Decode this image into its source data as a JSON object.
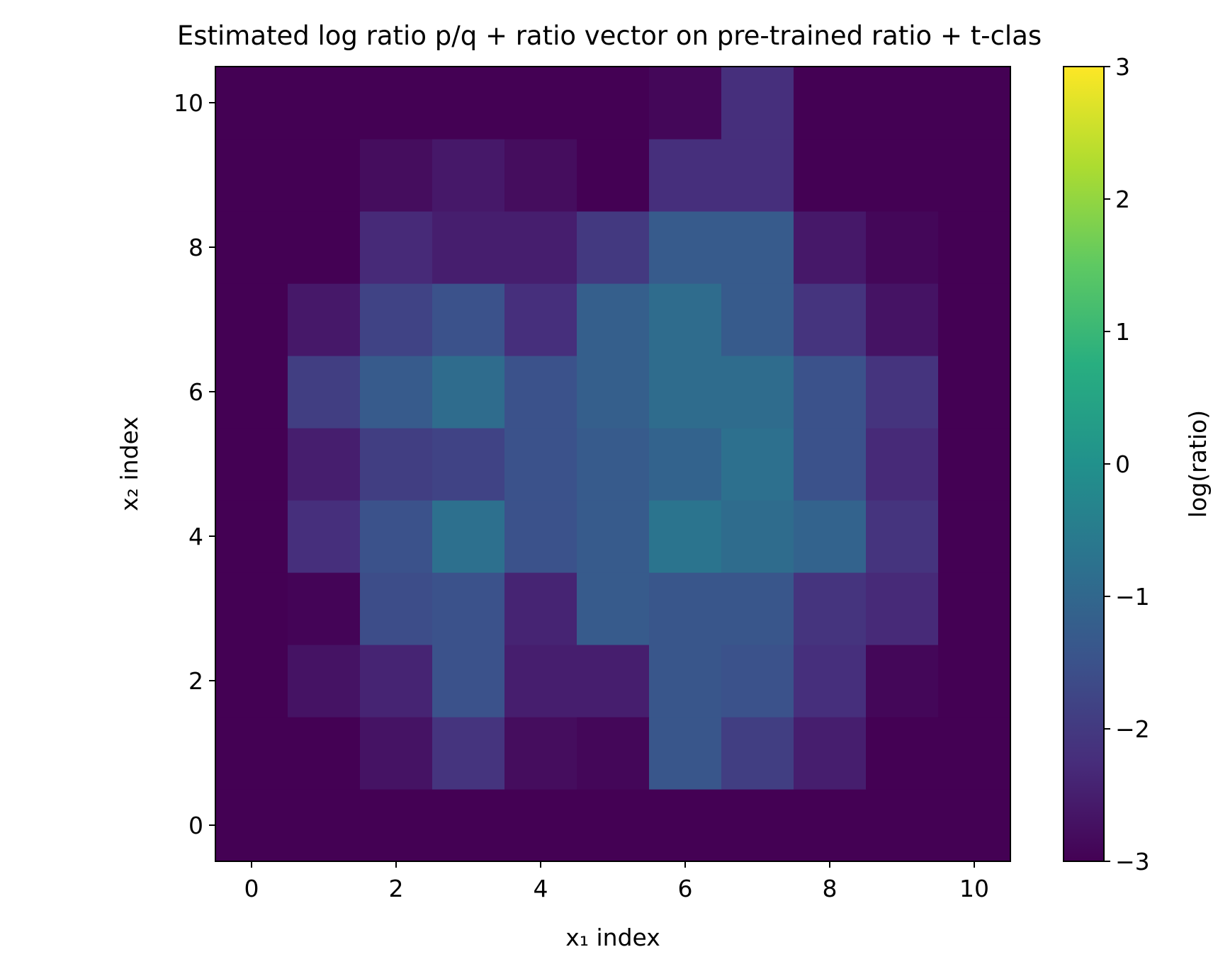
{
  "chart_data": {
    "type": "heatmap",
    "title": "Estimated log ratio p/q + ratio vector on pre-trained ratio + t-clas",
    "xlabel": "x₁ index",
    "ylabel": "x₂ index",
    "colorbar_label": "log(ratio)",
    "colormap": "viridis",
    "vmin": -3,
    "vmax": 3,
    "x_range": [
      -0.5,
      10.5
    ],
    "y_range": [
      -0.5,
      10.5
    ],
    "x_ticks": [
      0,
      2,
      4,
      6,
      8,
      10
    ],
    "y_ticks": [
      0,
      2,
      4,
      6,
      8,
      10
    ],
    "colorbar_ticks": [
      -3,
      -2,
      -1,
      0,
      1,
      2,
      3
    ],
    "grid": false,
    "rows_y_from_0": [
      [
        -3.0,
        -3.0,
        -3.0,
        -3.0,
        -3.0,
        -3.0,
        -3.0,
        -3.0,
        -3.0,
        -3.0,
        -3.0
      ],
      [
        -3.0,
        -3.0,
        -2.7,
        -2.1,
        -2.8,
        -2.9,
        -1.4,
        -1.9,
        -2.5,
        -3.0,
        -3.0
      ],
      [
        -3.0,
        -2.7,
        -2.4,
        -1.5,
        -2.5,
        -2.5,
        -1.4,
        -1.5,
        -2.2,
        -2.9,
        -3.0
      ],
      [
        -3.0,
        -2.95,
        -1.6,
        -1.5,
        -2.4,
        -1.3,
        -1.4,
        -1.4,
        -2.1,
        -2.3,
        -3.0
      ],
      [
        -3.0,
        -2.2,
        -1.5,
        -0.8,
        -1.5,
        -1.3,
        -0.7,
        -0.9,
        -1.1,
        -2.1,
        -3.0
      ],
      [
        -3.0,
        -2.5,
        -1.9,
        -1.8,
        -1.5,
        -1.3,
        -1.1,
        -0.8,
        -1.5,
        -2.3,
        -3.0
      ],
      [
        -3.0,
        -1.9,
        -1.3,
        -0.9,
        -1.5,
        -1.2,
        -0.9,
        -0.9,
        -1.5,
        -2.1,
        -3.0
      ],
      [
        -3.0,
        -2.6,
        -1.8,
        -1.5,
        -2.2,
        -1.2,
        -0.9,
        -1.3,
        -2.1,
        -2.7,
        -3.0
      ],
      [
        -3.0,
        -3.0,
        -2.3,
        -2.5,
        -2.5,
        -2.0,
        -1.3,
        -1.3,
        -2.6,
        -2.9,
        -3.0
      ],
      [
        -3.0,
        -3.0,
        -2.8,
        -2.6,
        -2.8,
        -3.0,
        -2.2,
        -2.2,
        -3.0,
        -3.0,
        -3.0
      ],
      [
        -3.0,
        -3.0,
        -3.0,
        -3.0,
        -3.0,
        -3.0,
        -2.9,
        -2.2,
        -3.0,
        -3.0,
        -3.0
      ]
    ]
  }
}
